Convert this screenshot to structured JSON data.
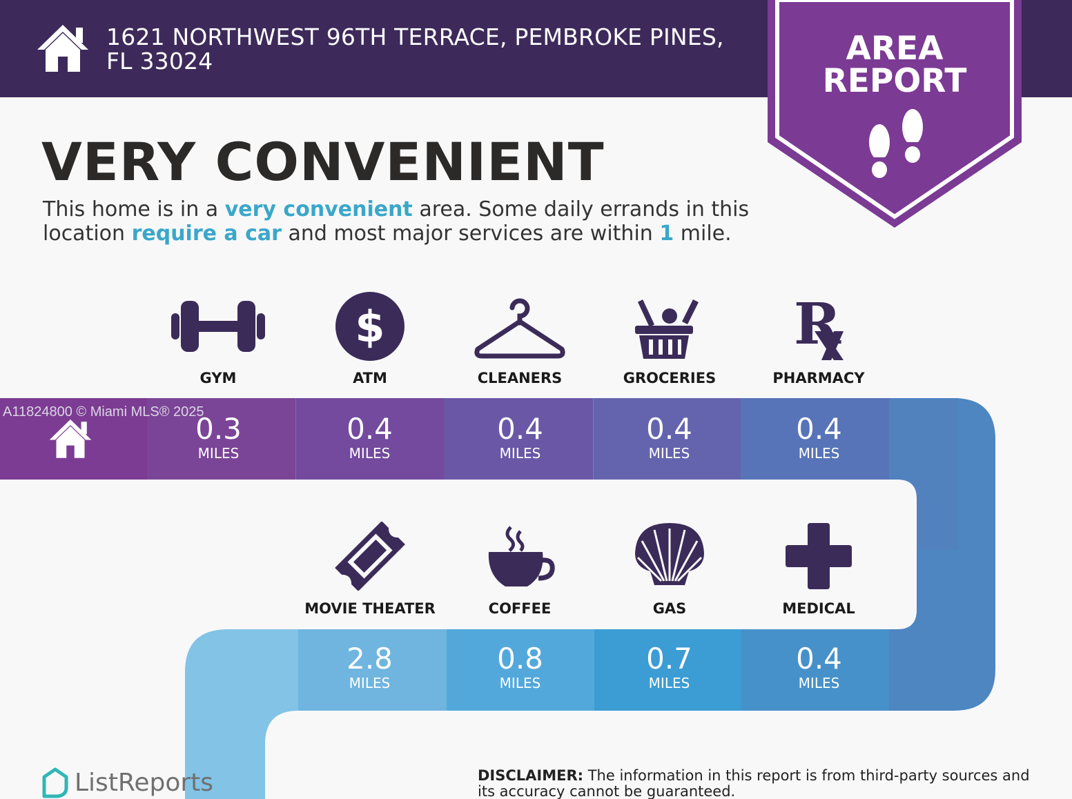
{
  "header": {
    "address": "1621 NORTHWEST 96TH TERRACE, PEMBROKE PINES, FL 33024",
    "icon": "house-icon"
  },
  "badge": {
    "line1": "AREA",
    "line2": "REPORT",
    "icon": "footprints-icon"
  },
  "headline": "VERY CONVENIENT",
  "description": {
    "p1": "This home is in a ",
    "h1": "very convenient",
    "p2": " area. Some daily errands in this location ",
    "h2": "require a car",
    "p3": " and most major services are within ",
    "h3": "1",
    "p4": " mile."
  },
  "row1": [
    {
      "label": "GYM",
      "value": "0.3",
      "unit": "MILES",
      "icon": "dumbbell-icon"
    },
    {
      "label": "ATM",
      "value": "0.4",
      "unit": "MILES",
      "icon": "dollar-icon"
    },
    {
      "label": "CLEANERS",
      "value": "0.4",
      "unit": "MILES",
      "icon": "hanger-icon"
    },
    {
      "label": "GROCERIES",
      "value": "0.4",
      "unit": "MILES",
      "icon": "basket-icon"
    },
    {
      "label": "PHARMACY",
      "value": "0.4",
      "unit": "MILES",
      "icon": "rx-icon"
    }
  ],
  "row2": [
    {
      "label": "MOVIE THEATER",
      "value": "2.8",
      "unit": "MILES",
      "icon": "ticket-icon"
    },
    {
      "label": "COFFEE",
      "value": "0.8",
      "unit": "MILES",
      "icon": "coffee-icon"
    },
    {
      "label": "GAS",
      "value": "0.7",
      "unit": "MILES",
      "icon": "shell-icon"
    },
    {
      "label": "MEDICAL",
      "value": "0.4",
      "unit": "MILES",
      "icon": "cross-icon"
    }
  ],
  "watermark": "A11824800 © Miami MLS® 2025",
  "brand": "ListReports",
  "disclaimer": {
    "label": "DISCLAIMER:",
    "text": " The information in this report is from third-party sources and its accuracy cannot be guaranteed."
  },
  "colors": {
    "header": "#3d2a5a",
    "badge": "#7b3a93",
    "icon": "#3b2b59",
    "accent": "#3aa7c9"
  }
}
